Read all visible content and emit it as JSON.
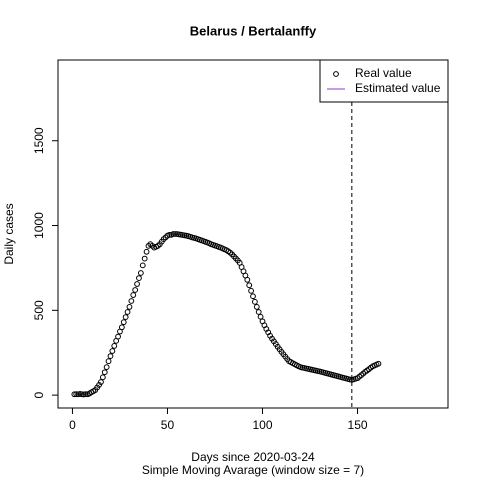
{
  "chart_data": {
    "type": "scatter",
    "title": "Belarus / Bertalanffy",
    "x_label": "Days since 2020-03-24",
    "subtitle": "Simple Moving Avarage (window size = 7)",
    "y_label": "Daily cases",
    "xlim": [
      -7.6,
      197.6
    ],
    "ylim": [
      -76,
      1976
    ],
    "xticks": [
      0,
      50,
      100,
      150
    ],
    "yticks": [
      0,
      500,
      1000,
      1500
    ],
    "vline": 147,
    "legend": "top-right",
    "series": [
      {
        "name": "Real value",
        "color": "#000000",
        "x": [
          1,
          2,
          3,
          4,
          5,
          6,
          7,
          8,
          9,
          10,
          11,
          12,
          13,
          14,
          15,
          16,
          17,
          18,
          19,
          20,
          21,
          22,
          23,
          24,
          25,
          26,
          27,
          28,
          29,
          30,
          31,
          32,
          33,
          34,
          35,
          36,
          37,
          38,
          39,
          40,
          41,
          42,
          43,
          44,
          45,
          46,
          47,
          48,
          49,
          50,
          51,
          52,
          53,
          54,
          55,
          56,
          57,
          58,
          59,
          60,
          61,
          62,
          63,
          64,
          65,
          66,
          67,
          68,
          69,
          70,
          71,
          72,
          73,
          74,
          75,
          76,
          77,
          78,
          79,
          80,
          81,
          82,
          83,
          84,
          85,
          86,
          87,
          88,
          89,
          90,
          91,
          92,
          93,
          94,
          95,
          96,
          97,
          98,
          99,
          100,
          101,
          102,
          103,
          104,
          105,
          106,
          107,
          108,
          109,
          110,
          111,
          112,
          113,
          114,
          115,
          116,
          117,
          118,
          119,
          120,
          121,
          122,
          123,
          124,
          125,
          126,
          127,
          128,
          129,
          130,
          131,
          132,
          133,
          134,
          135,
          136,
          137,
          138,
          139,
          140,
          141,
          142,
          143,
          144,
          145,
          146,
          147,
          148,
          149,
          150,
          151,
          152,
          153,
          154,
          155,
          156,
          157,
          158,
          159,
          160,
          161
        ],
        "values": [
          5,
          6,
          5,
          7,
          5,
          4,
          6,
          5,
          10,
          17,
          23,
          30,
          45,
          60,
          77,
          105,
          135,
          165,
          200,
          230,
          260,
          290,
          320,
          345,
          375,
          400,
          430,
          460,
          490,
          520,
          555,
          590,
          620,
          655,
          690,
          720,
          765,
          805,
          845,
          880,
          890,
          880,
          870,
          875,
          880,
          890,
          905,
          920,
          930,
          940,
          945,
          945,
          950,
          950,
          950,
          948,
          946,
          944,
          942,
          940,
          937,
          934,
          930,
          927,
          924,
          920,
          916,
          912,
          908,
          904,
          900,
          895,
          890,
          886,
          882,
          878,
          874,
          870,
          865,
          860,
          855,
          848,
          840,
          830,
          818,
          806,
          794,
          780,
          755,
          730,
          705,
          680,
          648,
          615,
          583,
          550,
          520,
          490,
          462,
          435,
          412,
          390,
          370,
          350,
          333,
          317,
          301,
          285,
          270,
          255,
          241,
          227,
          213,
          200,
          194,
          188,
          182,
          176,
          170,
          165,
          162,
          160,
          157,
          155,
          152,
          150,
          147,
          145,
          142,
          140,
          137,
          134,
          131,
          128,
          125,
          122,
          119,
          116,
          113,
          110,
          107,
          104,
          101,
          98,
          95,
          92,
          90,
          93,
          97,
          100,
          109,
          118,
          127,
          137,
          145,
          153,
          162,
          170,
          175,
          180,
          185
        ]
      },
      {
        "name": "Estimated value",
        "color": "#9b30c8"
      }
    ]
  }
}
